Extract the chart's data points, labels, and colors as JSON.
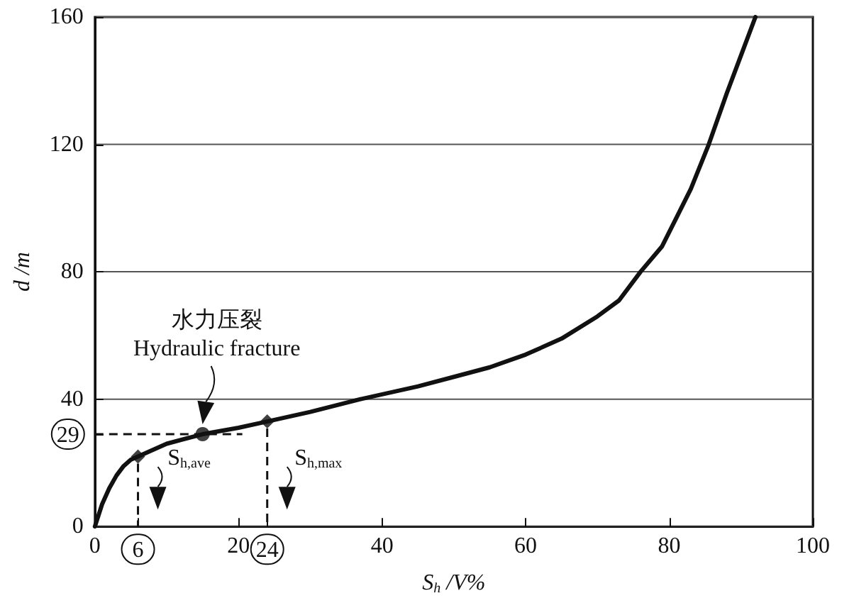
{
  "chart_data": {
    "type": "line",
    "xlabel": "S$_{h}$ /V%",
    "ylabel": "d /m",
    "xlim": [
      0,
      100
    ],
    "xticks": [
      0,
      6,
      20,
      24,
      40,
      60,
      80,
      100
    ],
    "ylim": [
      0,
      160
    ],
    "yticks": [
      0,
      29,
      40,
      80,
      120,
      160
    ],
    "grid": "y",
    "marker": "none",
    "line_style": "solid",
    "series": [
      {
        "color": "#111111",
        "x": [
          0,
          1,
          2,
          3,
          4,
          5,
          6,
          10,
          15,
          20,
          24,
          30,
          37,
          45,
          50,
          55,
          60,
          65,
          70,
          73,
          76,
          79,
          81,
          83,
          85.5,
          88,
          90,
          92
        ],
        "values": [
          0,
          7,
          12,
          16,
          19,
          21,
          22,
          26,
          29,
          31,
          33,
          36,
          40,
          44,
          47,
          50,
          54,
          59,
          66,
          71,
          80,
          88,
          97,
          106,
          120,
          136,
          148,
          160
        ]
      },
      {
        "type": "scatter",
        "marker": "diamond",
        "color": "#111111",
        "x": [
          6,
          24
        ],
        "values": [
          22,
          33
        ]
      },
      {
        "type": "scatter",
        "marker": "circle",
        "color": "#111111",
        "x": [
          15
        ],
        "values": [
          29
        ]
      }
    ],
    "annotations": [
      "水力压裂\nHydraulic fracture",
      "S$_{h,ave}$",
      "S$_{h,max}$"
    ]
  }
}
